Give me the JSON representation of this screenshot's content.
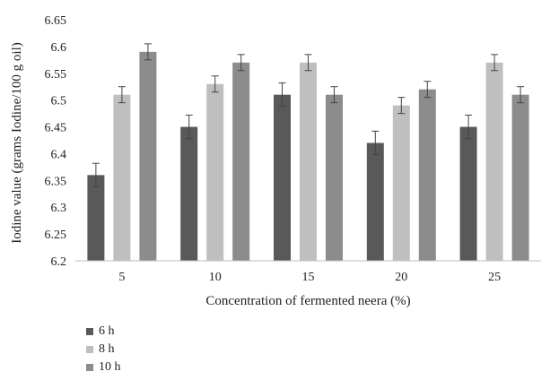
{
  "chart_data": {
    "type": "bar",
    "categories": [
      "5",
      "10",
      "15",
      "20",
      "25"
    ],
    "series": [
      {
        "name": "6 h",
        "values": [
          6.36,
          6.45,
          6.51,
          6.42,
          6.45
        ],
        "errors": [
          0.022,
          0.022,
          0.022,
          0.022,
          0.022
        ],
        "color": "#595959"
      },
      {
        "name": "8 h",
        "values": [
          6.51,
          6.53,
          6.57,
          6.49,
          6.57
        ],
        "errors": [
          0.015,
          0.015,
          0.015,
          0.015,
          0.015
        ],
        "color": "#bfbfbf"
      },
      {
        "name": "10 h",
        "values": [
          6.59,
          6.57,
          6.51,
          6.52,
          6.51
        ],
        "errors": [
          0.015,
          0.015,
          0.015,
          0.015,
          0.015
        ],
        "color": "#8c8c8c"
      }
    ],
    "xlabel": "Concentration of fermented neera (%)",
    "ylabel": "Iodine value (grams Iodine/100 g oil)",
    "ylim": [
      6.2,
      6.65
    ],
    "yticks": [
      "6.2",
      "6.25",
      "6.3",
      "6.35",
      "6.4",
      "6.45",
      "6.5",
      "6.55",
      "6.6",
      "6.65"
    ],
    "grid": false,
    "legend": "bottom-left"
  }
}
